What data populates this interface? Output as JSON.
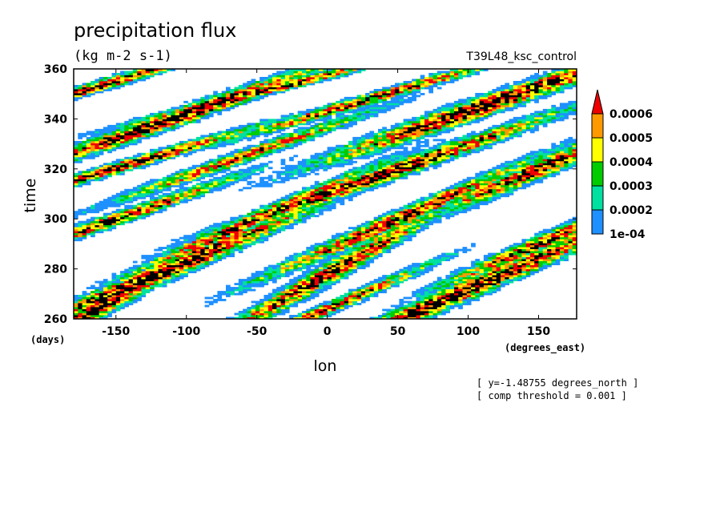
{
  "chart_data": {
    "type": "heatmap",
    "title": "precipitation flux",
    "units": "(kg m-2 s-1)",
    "run_label": "T39L48_ksc_control",
    "xlabel": "lon",
    "x_units": "(degrees_east)",
    "ylabel": "time",
    "y_units": "(days)",
    "xlim": [
      -180,
      177
    ],
    "ylim": [
      260,
      360
    ],
    "xticks": [
      -150,
      -100,
      -50,
      0,
      50,
      100,
      150
    ],
    "yticks": [
      260,
      280,
      300,
      320,
      340,
      360
    ],
    "notes": [
      "[ y=-1.48755 degrees_north ]",
      "[ comp threshold = 0.001 ]"
    ],
    "colorbar": {
      "labels": [
        "1e-04",
        "0.0002",
        "0.0003",
        "0.0004",
        "0.0005",
        "0.0006"
      ],
      "levels": [
        0.0001,
        0.0002,
        0.0003,
        0.0004,
        0.0005,
        0.0006
      ],
      "colors": [
        "#1e90ff",
        "#00e0a0",
        "#00cc00",
        "#ffff00",
        "#ff9900",
        "#ee0000"
      ],
      "over_color": "#ee0000",
      "max_color": "#000000"
    },
    "bands": [
      {
        "lon": -170,
        "time": 352,
        "slope": 6,
        "length": 60,
        "width": 4.0,
        "intensity": 0.9
      },
      {
        "lon": -110,
        "time": 340,
        "slope": 5,
        "length": 90,
        "width": 5.0,
        "intensity": 1.0
      },
      {
        "lon": -40,
        "time": 352,
        "slope": 7,
        "length": 70,
        "width": 4.0,
        "intensity": 0.8
      },
      {
        "lon": 30,
        "time": 348,
        "slope": 6,
        "length": 80,
        "width": 4.0,
        "intensity": 0.8
      },
      {
        "lon": 110,
        "time": 345,
        "slope": 5,
        "length": 100,
        "width": 6.0,
        "intensity": 0.95
      },
      {
        "lon": -140,
        "time": 322,
        "slope": 6,
        "length": 70,
        "width": 4.0,
        "intensity": 0.9
      },
      {
        "lon": -60,
        "time": 325,
        "slope": 5,
        "length": 80,
        "width": 4.0,
        "intensity": 0.7
      },
      {
        "lon": 40,
        "time": 318,
        "slope": 5,
        "length": 110,
        "width": 5.0,
        "intensity": 0.95
      },
      {
        "lon": 150,
        "time": 320,
        "slope": 4,
        "length": 60,
        "width": 5.0,
        "intensity": 0.8
      },
      {
        "lon": -150,
        "time": 300,
        "slope": 5,
        "length": 70,
        "width": 4.0,
        "intensity": 0.8
      },
      {
        "lon": -50,
        "time": 300,
        "slope": 4,
        "length": 80,
        "width": 4.0,
        "intensity": 0.8
      },
      {
        "lon": 50,
        "time": 300,
        "slope": 4,
        "length": 90,
        "width": 4.0,
        "intensity": 0.85
      },
      {
        "lon": 150,
        "time": 290,
        "slope": 4,
        "length": 60,
        "width": 4.0,
        "intensity": 0.8
      },
      {
        "lon": -120,
        "time": 278,
        "slope": 4,
        "length": 110,
        "width": 5.0,
        "intensity": 0.95
      },
      {
        "lon": 0,
        "time": 278,
        "slope": 3,
        "length": 80,
        "width": 4.0,
        "intensity": 0.85
      },
      {
        "lon": 100,
        "time": 272,
        "slope": 4,
        "length": 120,
        "width": 5.0,
        "intensity": 0.95
      },
      {
        "lon": -160,
        "time": 265,
        "slope": 3,
        "length": 50,
        "width": 4.0,
        "intensity": 0.85
      },
      {
        "lon": 0,
        "time": 264,
        "slope": 4,
        "length": 60,
        "width": 3.0,
        "intensity": 0.8
      }
    ]
  }
}
